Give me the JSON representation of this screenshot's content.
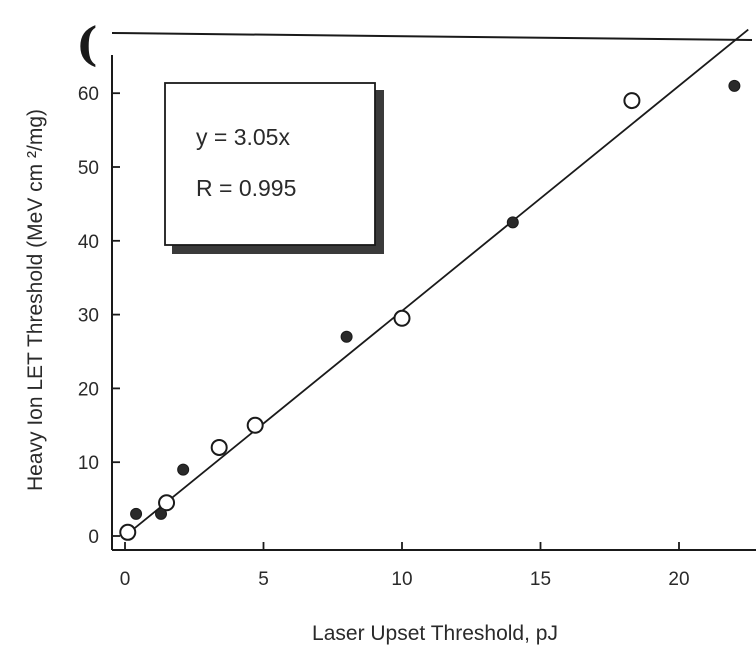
{
  "chart_data": {
    "type": "scatter",
    "title": "",
    "xlabel": "Laser Upset Threshold, pJ",
    "ylabel": "Heavy Ion LET Threshold (MeV cm ²/mg)",
    "xlim": [
      -0.5,
      22.5
    ],
    "ylim": [
      -2,
      65
    ],
    "x_ticks": [
      "0",
      "5",
      "10",
      "15",
      "20"
    ],
    "y_ticks": [
      "0",
      "10",
      "20",
      "30",
      "40",
      "50",
      "60"
    ],
    "grid": false,
    "legend": "none",
    "corner_mark": "(",
    "series": [
      {
        "marker": "open-circle",
        "points": [
          {
            "x": 0.1,
            "y": 0.5
          },
          {
            "x": 1.5,
            "y": 4.5
          },
          {
            "x": 3.4,
            "y": 12
          },
          {
            "x": 4.7,
            "y": 15
          },
          {
            "x": 10,
            "y": 29.5
          },
          {
            "x": 18.3,
            "y": 59
          }
        ]
      },
      {
        "marker": "filled-circle",
        "points": [
          {
            "x": 0.4,
            "y": 3
          },
          {
            "x": 1.3,
            "y": 3
          },
          {
            "x": 2.1,
            "y": 9
          },
          {
            "x": 8,
            "y": 27
          },
          {
            "x": 14,
            "y": 42.5
          },
          {
            "x": 22,
            "y": 61
          }
        ]
      }
    ],
    "fit": {
      "slope": 3.05,
      "x_range": [
        0,
        22.5
      ]
    },
    "annotation": {
      "equation": "y = 3.05x",
      "r_value": "R = 0.995"
    }
  }
}
